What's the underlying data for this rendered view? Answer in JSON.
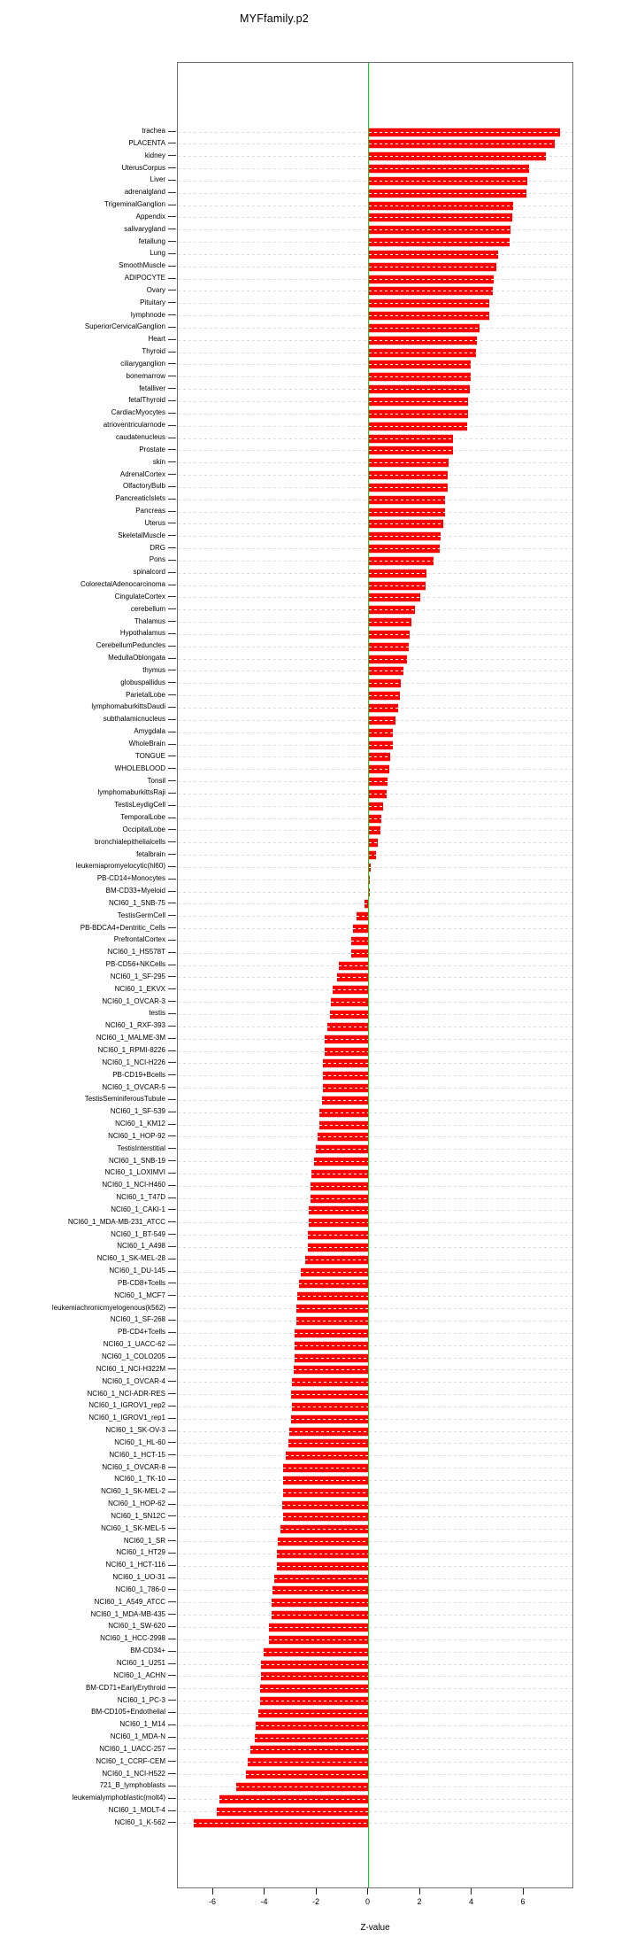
{
  "page": {
    "title": "MYFfamily.p2"
  },
  "chart_data": {
    "type": "bar",
    "orientation": "horizontal",
    "title": "MYFfamily.p2",
    "xlabel": "Z-value",
    "xticks": [
      -6,
      -4,
      -2,
      0,
      2,
      4,
      6
    ],
    "xlim": [
      -7.4,
      7.9
    ],
    "grid": "horizontal dashed line per category",
    "zero_line": true,
    "legend": "none",
    "colors": {
      "bar": "#ff0000",
      "zero_line": "#00dd00",
      "grid": "#dcdcdc",
      "axis": "#6e6e6e",
      "text": "#000000",
      "background": "#ffffff"
    },
    "categories": [
      "trachea",
      "PLACENTA",
      "kidney",
      "UterusCorpus",
      "Liver",
      "adrenalgland",
      "TrigeminalGanglion",
      "Appendix",
      "salivarygland",
      "fetallung",
      "Lung",
      "SmoothMuscle",
      "ADIPOCYTE",
      "Ovary",
      "Pituitary",
      "lymphnode",
      "SuperiorCervicalGanglion",
      "Heart",
      "Thyroid",
      "ciliaryganglion",
      "bonemarrow",
      "fetalliver",
      "fetalThyroid",
      "CardiacMyocytes",
      "atrioventricularnode",
      "caudatenucleus",
      "Prostate",
      "skin",
      "AdrenalCortex",
      "OlfactoryBulb",
      "PancreaticIslets",
      "Pancreas",
      "Uterus",
      "SkeletalMuscle",
      "DRG",
      "Pons",
      "spinalcord",
      "ColorectalAdenocarcinoma",
      "CingulateCortex",
      "cerebellum",
      "Thalamus",
      "Hypothalamus",
      "CerebellumPeduncles",
      "MedullaOblongata",
      "thymus",
      "globuspallidus",
      "ParietalLobe",
      "lymphomaburkittsDaudi",
      "subthalamicnucleus",
      "Amygdala",
      "WholeBrain",
      "TONGUE",
      "WHOLEBLOOD",
      "Tonsil",
      "lymphomaburkittsRaji",
      "TestisLeydigCell",
      "TemporalLobe",
      "OccipitalLobe",
      "bronchialepithelialcells",
      "fetalbrain",
      "leukemiapromyelocytic(hl60)",
      "PB-CD14+Monocytes",
      "BM-CD33+Myeloid",
      "NCI60_1_SNB-75",
      "TestisGermCell",
      "PB-BDCA4+Dentritic_Cells",
      "PrefrontalCortex",
      "NCI60_1_HS578T",
      "PB-CD56+NKCells",
      "NCI60_1_SF-295",
      "NCI60_1_EKVX",
      "NCI60_1_OVCAR-3",
      "testis",
      "NCI60_1_RXF-393",
      "NCI60_1_MALME-3M",
      "NCI60_1_RPMI-8226",
      "NCI60_1_NCI-H226",
      "PB-CD19+Bcells",
      "NCI60_1_OVCAR-5",
      "TestisSeminiferousTubule",
      "NCI60_1_SF-539",
      "NCI60_1_KM12",
      "NCI60_1_HOP-92",
      "TestisInterstitial",
      "NCI60_1_SNB-19",
      "NCI60_1_LOXIMVI",
      "NCI60_1_NCI-H460",
      "NCI60_1_T47D",
      "NCI60_1_CAKI-1",
      "NCI60_1_MDA-MB-231_ATCC",
      "NCI60_1_BT-549",
      "NCI60_1_A498",
      "NCI60_1_SK-MEL-28",
      "NCI60_1_DU-145",
      "PB-CD8+Tcells",
      "NCI60_1_MCF7",
      "leukemiachronicmyelogenous(k562)",
      "NCI60_1_SF-268",
      "PB-CD4+Tcells",
      "NCI60_1_UACC-62",
      "NCI60_1_COLO205",
      "NCI60_1_NCI-H322M",
      "NCI60_1_OVCAR-4",
      "NCI60_1_NCI-ADR-RES",
      "NCI60_1_IGROV1_rep2",
      "NCI60_1_IGROV1_rep1",
      "NCI60_1_SK-OV-3",
      "NCI60_1_HL-60",
      "NCI60_1_HCT-15",
      "NCI60_1_OVCAR-8",
      "NCI60_1_TK-10",
      "NCI60_1_SK-MEL-2",
      "NCI60_1_HOP-62",
      "NCI60_1_SN12C",
      "NCI60_1_SK-MEL-5",
      "NCI60_1_SR",
      "NCI60_1_HT29",
      "NCI60_1_HCT-116",
      "NCI60_1_UO-31",
      "NCI60_1_786-0",
      "NCI60_1_A549_ATCC",
      "NCI60_1_MDA-MB-435",
      "NCI60_1_SW-620",
      "NCI60_1_HCC-2998",
      "BM-CD34+",
      "NCI60_1_U251",
      "NCI60_1_ACHN",
      "BM-CD71+EarlyErythroid",
      "NCI60_1_PC-3",
      "BM-CD105+Endothelial",
      "NCI60_1_M14",
      "NCI60_1_MDA-N",
      "NCI60_1_UACC-257",
      "NCI60_1_CCRF-CEM",
      "NCI60_1_NCI-H522",
      "721_B_lymphoblasts",
      "leukemialymphoblastic(molt4)",
      "NCI60_1_MOLT-4",
      "NCI60_1_K-562"
    ],
    "values": [
      7.4,
      7.2,
      6.85,
      6.2,
      6.15,
      6.1,
      5.6,
      5.55,
      5.5,
      5.45,
      5.0,
      4.95,
      4.85,
      4.8,
      4.65,
      4.65,
      4.3,
      4.2,
      4.15,
      3.95,
      3.95,
      3.9,
      3.85,
      3.85,
      3.8,
      3.25,
      3.25,
      3.1,
      3.05,
      3.05,
      2.95,
      2.95,
      2.9,
      2.8,
      2.75,
      2.5,
      2.25,
      2.2,
      2.0,
      1.8,
      1.65,
      1.6,
      1.55,
      1.5,
      1.35,
      1.25,
      1.2,
      1.15,
      1.05,
      0.95,
      0.95,
      0.85,
      0.8,
      0.75,
      0.7,
      0.55,
      0.5,
      0.45,
      0.35,
      0.3,
      0.1,
      0.05,
      0.03,
      -0.15,
      -0.45,
      -0.6,
      -0.65,
      -0.65,
      -1.15,
      -1.2,
      -1.4,
      -1.45,
      -1.5,
      -1.6,
      -1.7,
      -1.7,
      -1.75,
      -1.75,
      -1.75,
      -1.8,
      -1.9,
      -1.9,
      -1.95,
      -2.05,
      -2.1,
      -2.2,
      -2.25,
      -2.25,
      -2.3,
      -2.3,
      -2.35,
      -2.35,
      -2.45,
      -2.6,
      -2.7,
      -2.75,
      -2.8,
      -2.8,
      -2.85,
      -2.85,
      -2.85,
      -2.9,
      -2.95,
      -3.0,
      -2.95,
      -3.0,
      -3.05,
      -3.1,
      -3.2,
      -3.3,
      -3.3,
      -3.3,
      -3.35,
      -3.3,
      -3.4,
      -3.5,
      -3.55,
      -3.55,
      -3.65,
      -3.7,
      -3.75,
      -3.75,
      -3.85,
      -3.85,
      -4.05,
      -4.15,
      -4.15,
      -4.2,
      -4.2,
      -4.25,
      -4.35,
      -4.4,
      -4.55,
      -4.65,
      -4.75,
      -5.1,
      -5.75,
      -5.85,
      -6.75
    ]
  }
}
